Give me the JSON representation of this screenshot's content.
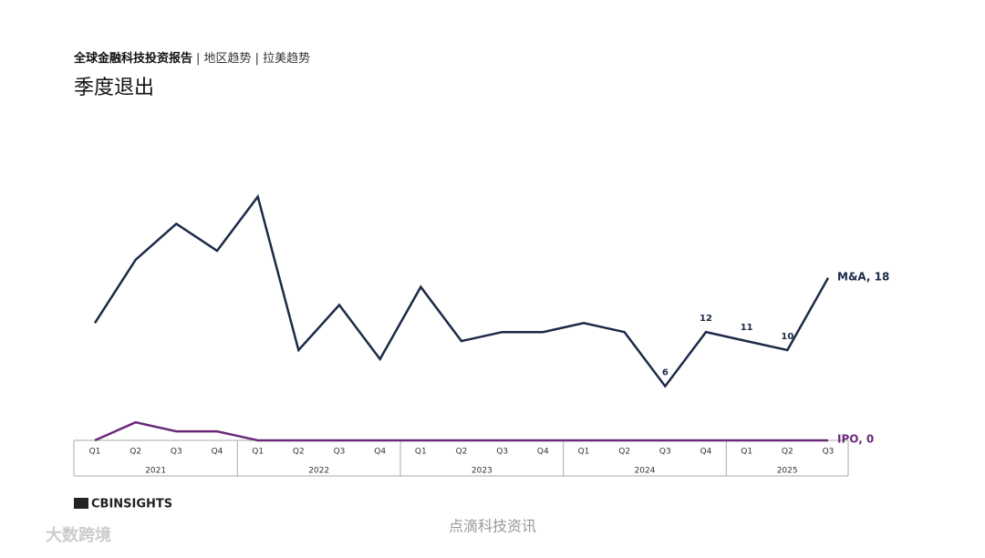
{
  "header": {
    "report": "全球金融科技投资报告",
    "section": "| 地区趋势 | 拉美趋势"
  },
  "chart_data": {
    "type": "line",
    "title": "季度退出",
    "groups": [
      {
        "name": "2021",
        "categories": [
          "Q1",
          "Q2",
          "Q3",
          "Q4"
        ]
      },
      {
        "name": "2022",
        "categories": [
          "Q1",
          "Q2",
          "Q3",
          "Q4"
        ]
      },
      {
        "name": "2023",
        "categories": [
          "Q1",
          "Q2",
          "Q3",
          "Q4"
        ]
      },
      {
        "name": "2024",
        "categories": [
          "Q1",
          "Q2",
          "Q3",
          "Q4"
        ]
      },
      {
        "name": "2025",
        "categories": [
          "Q1",
          "Q2",
          "Q3"
        ]
      }
    ],
    "ylim": [
      0,
      30
    ],
    "series": [
      {
        "name": "M&A",
        "color": "#1c2a48",
        "values": [
          13,
          20,
          24,
          21,
          27,
          10,
          15,
          9,
          17,
          11,
          12,
          12,
          13,
          12,
          6,
          12,
          11,
          10,
          18
        ],
        "value_labels": [
          null,
          null,
          null,
          null,
          null,
          null,
          null,
          null,
          null,
          null,
          null,
          null,
          null,
          null,
          "6",
          "12",
          "11",
          "10",
          "M&A, 18"
        ]
      },
      {
        "name": "IPO",
        "color": "#6a2a78",
        "values": [
          0,
          2,
          1,
          1,
          0,
          0,
          0,
          0,
          0,
          0,
          0,
          0,
          0,
          0,
          0,
          0,
          0,
          0,
          0
        ],
        "value_labels": [
          null,
          null,
          null,
          null,
          null,
          null,
          null,
          null,
          null,
          null,
          null,
          null,
          null,
          null,
          null,
          null,
          null,
          null,
          "IPO, 0"
        ]
      }
    ]
  },
  "footer": {
    "logo": "CBINSIGHTS",
    "watermark": "点滴科技资讯",
    "watermark2": "大数跨境"
  }
}
